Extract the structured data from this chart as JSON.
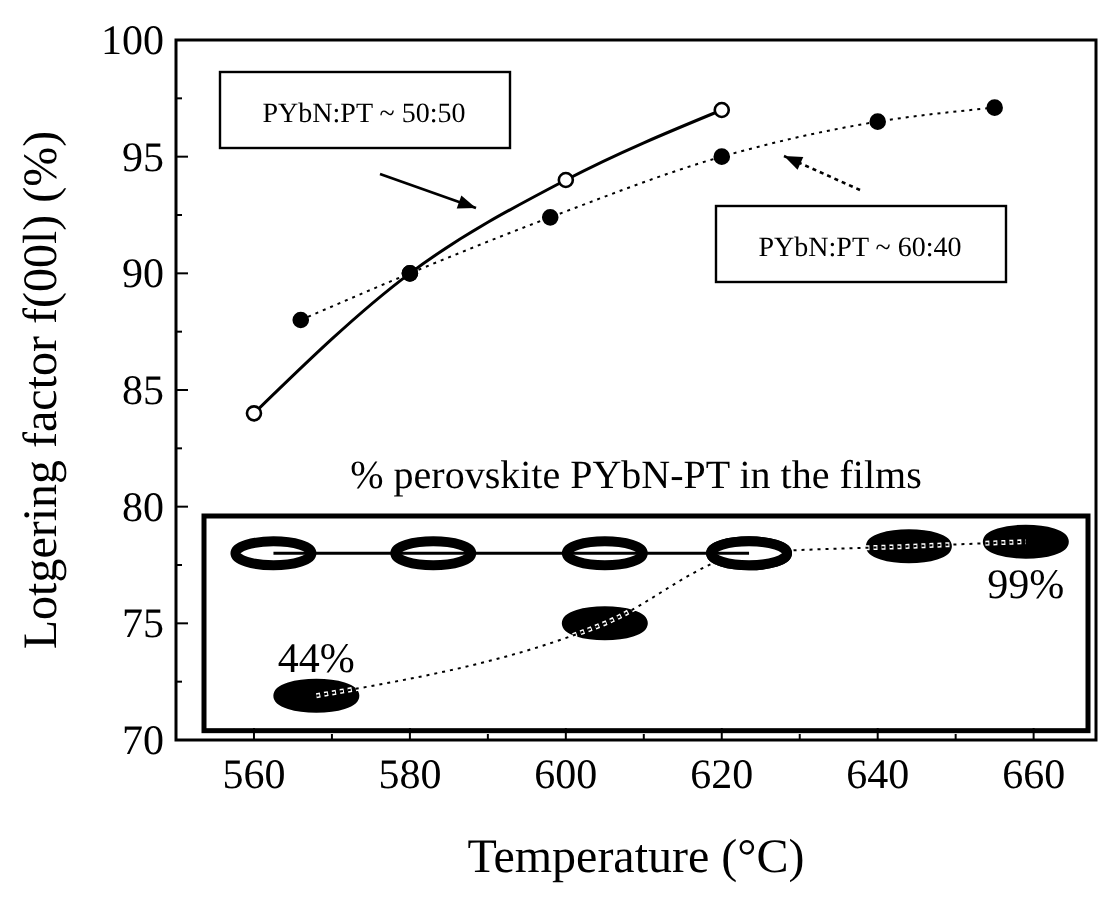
{
  "chart_data": {
    "type": "line",
    "xlabel": "Temperature (°C)",
    "ylabel": "Lotgering factor  f(00l)  (%)",
    "xlim": [
      550,
      668
    ],
    "ylim": [
      70,
      100
    ],
    "xticks": [
      560,
      {
        "value": 570,
        "label": null
      },
      580,
      {
        "value": 590,
        "label": null
      },
      600,
      {
        "value": 610,
        "label": null
      },
      620,
      {
        "value": 630,
        "label": null
      },
      640,
      {
        "value": 650,
        "label": null
      },
      660
    ],
    "yticks": [
      70,
      {
        "value": 72.5,
        "label": null
      },
      75,
      {
        "value": 77.5,
        "label": null
      },
      80,
      {
        "value": 82.5,
        "label": null
      },
      85,
      {
        "value": 87.5,
        "label": null
      },
      90,
      {
        "value": 92.5,
        "label": null
      },
      95,
      {
        "value": 97.5,
        "label": null
      },
      100
    ],
    "legend": false,
    "grid": false,
    "series": [
      {
        "name": "PYbN:PT ~ 50:50",
        "color": "#000000",
        "marker": "circle",
        "line_style": "solid",
        "x": [
          560,
          580,
          600,
          620
        ],
        "values": [
          84,
          90,
          94,
          97
        ]
      },
      {
        "name": "PYbN:PT ~ 60:40",
        "color": "#000000",
        "marker": "circle",
        "line_style": "dotted",
        "x": [
          566,
          580,
          598,
          620,
          640,
          655
        ],
        "values": [
          88,
          90,
          92.4,
          95,
          96.5,
          97.1
        ]
      },
      {
        "color": "#000000",
        "marker": "circle",
        "line_style": "solid",
        "x": [
          562.5,
          583,
          605,
          623.5
        ],
        "values": [
          78,
          78,
          78,
          78
        ]
      },
      {
        "color": "#000000",
        "marker": "circle",
        "line_style": "dotted",
        "x": [
          568,
          605,
          623.5,
          644,
          659
        ],
        "values": [
          71.9,
          75,
          78,
          78.3,
          78.5
        ]
      }
    ],
    "annotations": [
      "% perovskite PYbN-PT in the films",
      {
        "text": "44%",
        "x": 568,
        "y": 71.9
      },
      {
        "text": "99%",
        "x": 659,
        "y": 78.5
      }
    ]
  }
}
